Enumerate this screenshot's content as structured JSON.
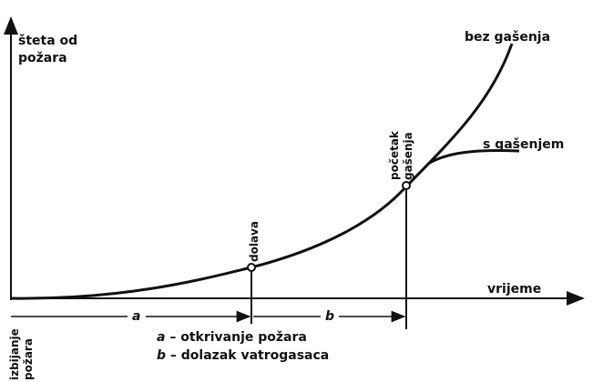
{
  "diagram": {
    "y_axis_label_line1": "šteta od",
    "y_axis_label_line2": "požara",
    "x_axis_label": "vrijeme",
    "curve_without_extinguishing": "bez gašenja",
    "curve_with_extinguishing": "s gašenjem",
    "marker_arrival": "dolava",
    "marker_start_line1": "početak",
    "marker_start_line2": "gašenja",
    "start_label_line1": "izbijanje",
    "start_label_line2": "požara",
    "interval_a": "a",
    "interval_b": "b",
    "legend_a_letter": "a",
    "legend_a_text": " – otkrivanje požara",
    "legend_b_letter": "b",
    "legend_b_text": " – dolazak vatrogasaca"
  },
  "colors": {
    "ink": "#111111",
    "background": "#ffffff"
  }
}
